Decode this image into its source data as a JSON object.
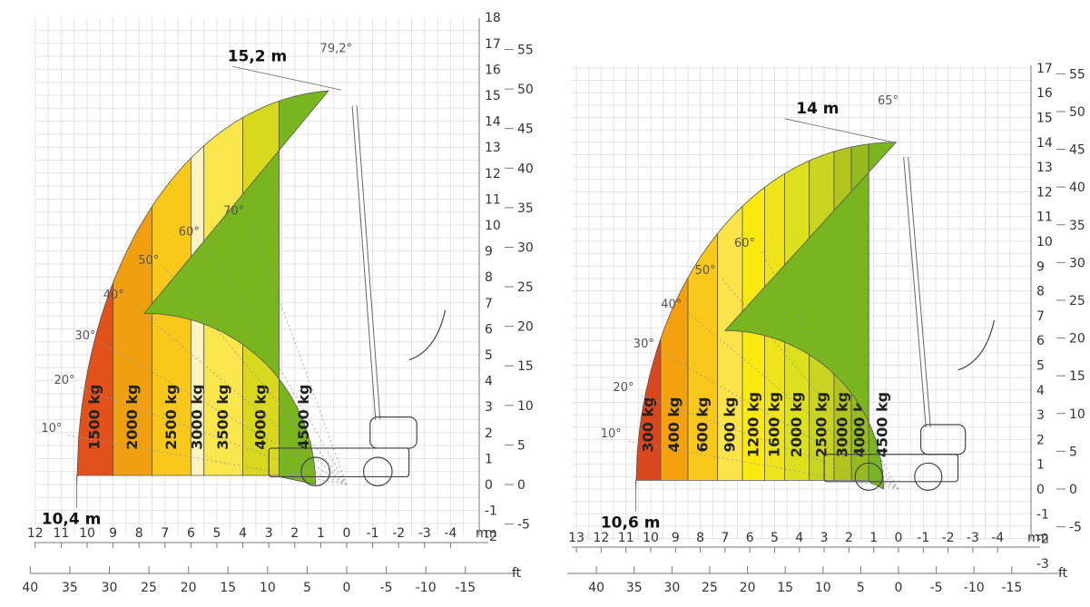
{
  "chart_data": [
    {
      "type": "area",
      "xunit": "m",
      "yunit": "m",
      "ftunit": "ft",
      "max_height_label": "15,2 m",
      "max_height": 15.2,
      "max_angle_label": "79,2°",
      "max_reach_label": "10,4 m",
      "max_reach": 10.4,
      "xlim": [
        -4.5,
        12
      ],
      "ylim": [
        -5,
        18
      ],
      "x_ticks": [
        "12",
        "11",
        "10",
        "9",
        "8",
        "7",
        "6",
        "5",
        "4",
        "3",
        "2",
        "1",
        "0",
        "-1",
        "-2",
        "-3",
        "-4"
      ],
      "y_ticks": [
        "18",
        "17",
        "16",
        "15",
        "14",
        "13",
        "12",
        "11",
        "10",
        "9",
        "8",
        "7",
        "6",
        "5",
        "4",
        "3",
        "2",
        "1",
        "0",
        "-1",
        "-2"
      ],
      "ft_x_ticks": [
        "40",
        "35",
        "30",
        "25",
        "20",
        "15",
        "10",
        "5",
        "0",
        "-5",
        "-10",
        "-15"
      ],
      "ft_y_ticks": [
        "55",
        "50",
        "45",
        "40",
        "35",
        "30",
        "25",
        "20",
        "15",
        "10",
        "5",
        "0",
        "-5"
      ],
      "angles": [
        "10°",
        "20°",
        "30°",
        "40°",
        "50°",
        "60°",
        "70°"
      ],
      "zones": [
        {
          "name": "1500 kg",
          "color": "#e2501c",
          "x_outer": 10.4,
          "x_inner": 9.0
        },
        {
          "name": "2000 kg",
          "color": "#f0a00f",
          "x_outer": 9.0,
          "x_inner": 7.5
        },
        {
          "name": "2500 kg",
          "color": "#f9c81a",
          "x_outer": 7.5,
          "x_inner": 6.0
        },
        {
          "name": "3000 kg",
          "color": "#fdf3c4",
          "x_outer": 6.0,
          "x_inner": 5.5
        },
        {
          "name": "3500 kg",
          "color": "#fbe64e",
          "x_outer": 5.5,
          "x_inner": 4.0
        },
        {
          "name": "4000 kg",
          "color": "#d8d81e",
          "x_outer": 4.0,
          "x_inner": 2.6
        },
        {
          "name": "4500 kg",
          "color": "#78b51f",
          "x_outer": 2.6,
          "x_inner": 0.7
        }
      ]
    },
    {
      "type": "area",
      "xunit": "m",
      "yunit": "m",
      "ftunit": "ft",
      "max_height_label": "14 m",
      "max_height": 14.0,
      "max_angle_label": "65°",
      "max_reach_label": "10,6 m",
      "max_reach": 10.6,
      "xlim": [
        -4.5,
        13
      ],
      "ylim": [
        -4,
        17
      ],
      "x_ticks": [
        "13",
        "12",
        "11",
        "10",
        "9",
        "8",
        "7",
        "6",
        "5",
        "4",
        "3",
        "2",
        "1",
        "0",
        "-1",
        "-2",
        "-3",
        "-4"
      ],
      "y_ticks": [
        "17",
        "16",
        "15",
        "14",
        "13",
        "12",
        "11",
        "10",
        "9",
        "8",
        "7",
        "6",
        "5",
        "4",
        "3",
        "2",
        "1",
        "0",
        "-1",
        "-2",
        "-3"
      ],
      "ft_x_ticks": [
        "40",
        "35",
        "30",
        "25",
        "20",
        "15",
        "10",
        "5",
        "0",
        "-5",
        "-10",
        "-15"
      ],
      "ft_y_ticks": [
        "55",
        "50",
        "45",
        "40",
        "35",
        "30",
        "25",
        "20",
        "15",
        "10",
        "5",
        "0",
        "-5"
      ],
      "angles": [
        "10°",
        "20°",
        "30°",
        "40°",
        "50°",
        "60°"
      ],
      "zones": [
        {
          "name": "300 kg",
          "color": "#d9471e",
          "x_outer": 10.6,
          "x_inner": 9.6
        },
        {
          "name": "400 kg",
          "color": "#f3a10f",
          "x_outer": 9.6,
          "x_inner": 8.5
        },
        {
          "name": "600 kg",
          "color": "#f9c81a",
          "x_outer": 8.5,
          "x_inner": 7.3
        },
        {
          "name": "900 kg",
          "color": "#fde44a",
          "x_outer": 7.3,
          "x_inner": 6.3
        },
        {
          "name": "1200 kg",
          "color": "#fbe90f",
          "x_outer": 6.3,
          "x_inner": 5.4
        },
        {
          "name": "1600 kg",
          "color": "#efe41c",
          "x_outer": 5.4,
          "x_inner": 4.6
        },
        {
          "name": "2000 kg",
          "color": "#dde01c",
          "x_outer": 4.6,
          "x_inner": 3.6
        },
        {
          "name": "2500 kg",
          "color": "#c9d422",
          "x_outer": 3.6,
          "x_inner": 2.6
        },
        {
          "name": "3000 kg",
          "color": "#b2c41e",
          "x_outer": 2.6,
          "x_inner": 1.9
        },
        {
          "name": "4000 kg",
          "color": "#96bb1e",
          "x_outer": 1.9,
          "x_inner": 1.2
        },
        {
          "name": "4500 kg",
          "color": "#78b51f",
          "x_outer": 1.2,
          "x_inner": 0.1
        }
      ]
    }
  ]
}
